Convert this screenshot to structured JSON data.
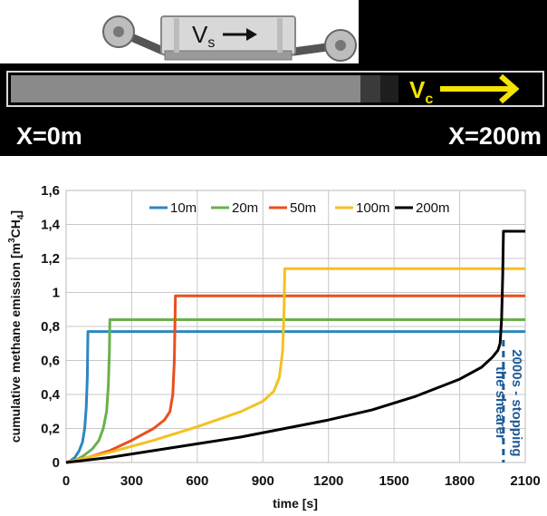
{
  "scene": {
    "shearer_velocity_label": "V",
    "shearer_velocity_sub": "s",
    "conveyor_velocity_label": "V",
    "conveyor_velocity_sub": "c",
    "start_label": "X=0m",
    "end_label": "X=200m",
    "colors": {
      "background": "#000000",
      "mined": "#8a8a8a",
      "arrow_conveyor": "#f2e400"
    }
  },
  "chart_data": {
    "type": "line",
    "xlabel": "time [s]",
    "ylabel": "cumulative methane emission [m³CH₄]",
    "ylabel_main": "cumulative methane emission [m",
    "ylabel_sup": "3",
    "ylabel_mid": "CH",
    "ylabel_sub": "4",
    "ylabel_end": "]",
    "xlim": [
      0,
      2100
    ],
    "ylim": [
      0,
      1.6
    ],
    "x_ticks": [
      0,
      300,
      600,
      900,
      1200,
      1500,
      1800,
      2100
    ],
    "x_tick_labels": [
      "0",
      "300",
      "600",
      "900",
      "1200",
      "1500",
      "1800",
      "2100"
    ],
    "y_ticks": [
      0,
      0.2,
      0.4,
      0.6,
      0.8,
      1.0,
      1.2,
      1.4,
      1.6
    ],
    "y_tick_labels": [
      "0",
      "0,2",
      "0,4",
      "0,6",
      "0,8",
      "1",
      "1,2",
      "1,4",
      "1,6"
    ],
    "legend_position": "top",
    "series": [
      {
        "name": "10m",
        "color": "#2e86c1",
        "x": [
          0,
          20,
          40,
          60,
          75,
          85,
          92,
          97,
          100,
          2100
        ],
        "y": [
          0,
          0.01,
          0.03,
          0.07,
          0.12,
          0.2,
          0.32,
          0.5,
          0.77,
          0.77
        ]
      },
      {
        "name": "20m",
        "color": "#6ab04c",
        "x": [
          0,
          40,
          80,
          120,
          150,
          170,
          185,
          193,
          198,
          200,
          2100
        ],
        "y": [
          0,
          0.01,
          0.04,
          0.08,
          0.13,
          0.2,
          0.3,
          0.45,
          0.65,
          0.84,
          0.84
        ]
      },
      {
        "name": "50m",
        "color": "#e8501e",
        "x": [
          0,
          100,
          200,
          300,
          400,
          450,
          475,
          488,
          495,
          500,
          2100
        ],
        "y": [
          0,
          0.03,
          0.07,
          0.13,
          0.2,
          0.25,
          0.3,
          0.4,
          0.6,
          0.98,
          0.98
        ]
      },
      {
        "name": "100m",
        "color": "#f5c022",
        "x": [
          0,
          200,
          400,
          600,
          800,
          900,
          950,
          975,
          990,
          997,
          1000,
          2100
        ],
        "y": [
          0,
          0.06,
          0.13,
          0.21,
          0.3,
          0.36,
          0.42,
          0.5,
          0.65,
          0.9,
          1.14,
          1.14
        ]
      },
      {
        "name": "200m",
        "color": "#000000",
        "x": [
          0,
          200,
          400,
          600,
          800,
          1000,
          1200,
          1400,
          1600,
          1800,
          1900,
          1950,
          1975,
          1985,
          1992,
          1997,
          2000,
          2100
        ],
        "y": [
          0,
          0.03,
          0.07,
          0.11,
          0.15,
          0.2,
          0.25,
          0.31,
          0.39,
          0.49,
          0.56,
          0.62,
          0.66,
          0.7,
          0.85,
          1.1,
          1.36,
          1.36
        ]
      }
    ],
    "annotation": {
      "x": 2000,
      "line_1": "2000s - stopping",
      "line_2": "the shearer",
      "color": "#1f5b96"
    }
  }
}
